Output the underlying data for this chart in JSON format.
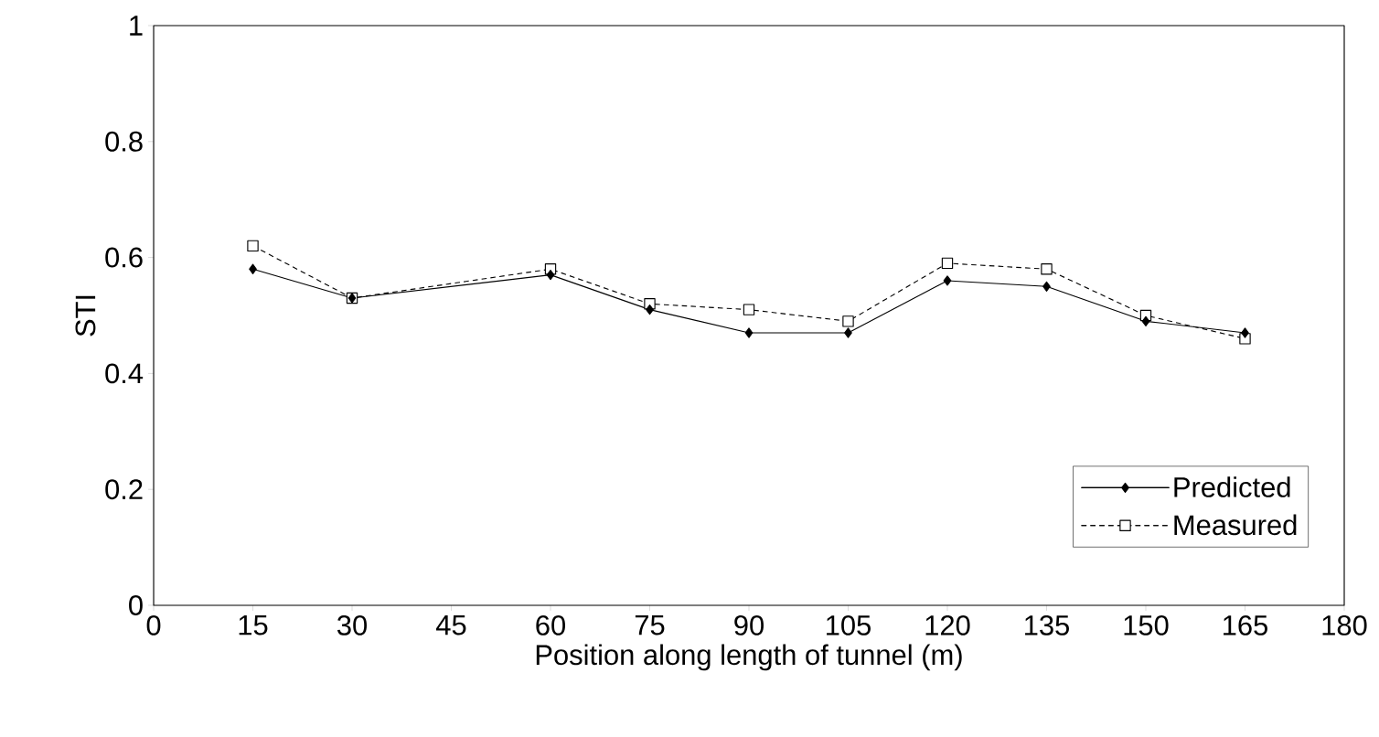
{
  "chart_data": {
    "type": "line",
    "xlabel": "Position along length of tunnel (m)",
    "ylabel": "STI",
    "x": [
      15,
      30,
      60,
      75,
      90,
      105,
      120,
      135,
      150,
      165
    ],
    "series": [
      {
        "name": "Predicted",
        "color": "#000000",
        "marker": "diamond",
        "line_style": "solid",
        "values": [
          0.58,
          0.53,
          0.57,
          0.51,
          0.47,
          0.47,
          0.56,
          0.55,
          0.49,
          0.47
        ]
      },
      {
        "name": "Measured",
        "color": "#000000",
        "marker": "square",
        "line_style": "dashed",
        "values": [
          0.62,
          0.53,
          0.58,
          0.52,
          0.51,
          0.49,
          0.59,
          0.58,
          0.5,
          0.46
        ]
      }
    ],
    "xlim": [
      0,
      180
    ],
    "xticks": [
      0,
      15,
      30,
      45,
      60,
      75,
      90,
      105,
      120,
      135,
      150,
      165,
      180
    ],
    "ylim": [
      0,
      1
    ],
    "yticks": [
      0,
      {
        "value": 0.2,
        "label": "0.2"
      },
      {
        "value": 0.4,
        "label": "0.4"
      },
      {
        "value": 0.6,
        "label": "0.6"
      },
      {
        "value": 0.8,
        "label": "0.8"
      },
      1
    ],
    "grid": false,
    "legend": "bottom right"
  }
}
